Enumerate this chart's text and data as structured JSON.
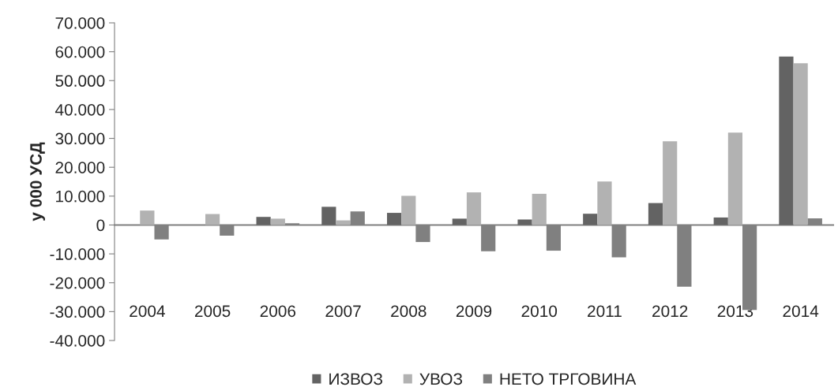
{
  "chart_data": {
    "type": "bar",
    "ylabel": "у 000 УСД",
    "categories": [
      "2004",
      "2005",
      "2006",
      "2007",
      "2008",
      "2009",
      "2010",
      "2011",
      "2012",
      "2013",
      "2014"
    ],
    "series": [
      {
        "name": "ИЗВОЗ",
        "color": "#636363",
        "values": [
          0,
          0,
          2800,
          6300,
          4200,
          2200,
          1900,
          3900,
          7600,
          2600,
          58300
        ]
      },
      {
        "name": "УВОЗ",
        "color": "#b2b2b2",
        "values": [
          5000,
          3800,
          2200,
          1600,
          10100,
          11300,
          10800,
          15100,
          29000,
          32000,
          56000
        ]
      },
      {
        "name": "НЕТО ТРГОВИНА",
        "color": "#808080",
        "values": [
          -5000,
          -3700,
          600,
          4700,
          -5900,
          -9100,
          -8900,
          -11200,
          -21400,
          -29400,
          2300
        ]
      }
    ],
    "ylim": [
      -40000,
      70000
    ],
    "yticks": [
      {
        "value": -40000,
        "label": "-40.000"
      },
      {
        "value": -30000,
        "label": "-30.000"
      },
      {
        "value": -20000,
        "label": "-20.000"
      },
      {
        "value": -10000,
        "label": "-10.000"
      },
      {
        "value": 0,
        "label": "0"
      },
      {
        "value": 10000,
        "label": "10.000"
      },
      {
        "value": 20000,
        "label": "20.000"
      },
      {
        "value": 30000,
        "label": "30.000"
      },
      {
        "value": 40000,
        "label": "40.000"
      },
      {
        "value": 50000,
        "label": "50.000"
      },
      {
        "value": 60000,
        "label": "60.000"
      },
      {
        "value": 70000,
        "label": "70.000"
      }
    ],
    "legend": "bottom"
  }
}
